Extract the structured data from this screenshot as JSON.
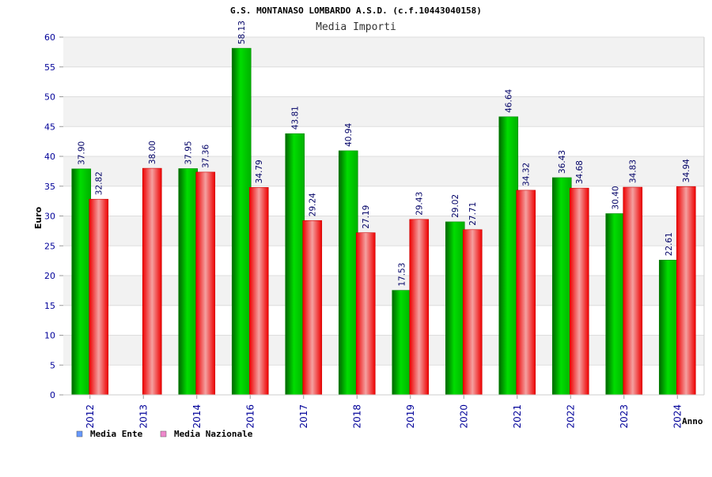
{
  "header": {
    "title": "G.S. MONTANASO LOMBARDO A.S.D. (c.f.10443040158)",
    "subtitle": "Media Importi"
  },
  "colors": {
    "ente": "#00cc00",
    "nazionale": "#ff2020",
    "legend_ente": "#6699ff",
    "legend_nazionale": "#ee88cc",
    "axis_text": "#000099",
    "value_label": "#000066",
    "band": "#f2f2f2"
  },
  "chart_data": {
    "type": "bar",
    "title": "Media Importi",
    "xlabel": "Anno",
    "ylabel": "Euro",
    "ylim": [
      0,
      60
    ],
    "yticks": [
      0,
      5,
      10,
      15,
      20,
      25,
      30,
      35,
      40,
      45,
      50,
      55,
      60
    ],
    "categories": [
      "2012",
      "2013",
      "2014",
      "2016",
      "2017",
      "2018",
      "2019",
      "2020",
      "2021",
      "2022",
      "2023",
      "2024"
    ],
    "series": [
      {
        "name": "Media Ente",
        "values": [
          37.9,
          null,
          37.95,
          58.13,
          43.81,
          40.94,
          17.53,
          29.02,
          46.64,
          36.43,
          30.4,
          22.61
        ],
        "labels": [
          "37.90",
          "",
          "37.95",
          "58.13",
          "43.81",
          "40.94",
          "17.53",
          "29.02",
          "46.64",
          "36.43",
          "30.40",
          "22.61"
        ]
      },
      {
        "name": "Media Nazionale",
        "values": [
          32.82,
          38.0,
          37.36,
          34.79,
          29.24,
          27.19,
          29.43,
          27.71,
          34.32,
          34.68,
          34.83,
          34.94
        ],
        "labels": [
          "32.82",
          "38.00",
          "37.36",
          "34.79",
          "29.24",
          "27.19",
          "29.43",
          "27.71",
          "34.32",
          "34.68",
          "34.83",
          "34.94"
        ]
      }
    ],
    "legend_position": "bottom-left",
    "grid": "alternating horizontal bands"
  }
}
